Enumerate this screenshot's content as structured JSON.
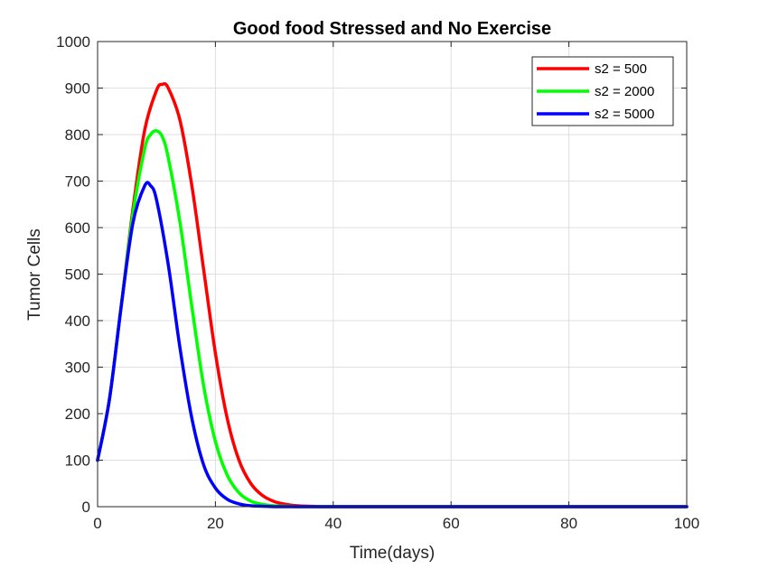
{
  "chart_data": {
    "type": "line",
    "title": "Good food Stressed and No Exercise",
    "xlabel": "Time(days)",
    "ylabel": "Tumor Cells",
    "xlim": [
      0,
      100
    ],
    "ylim": [
      0,
      1000
    ],
    "xticks": [
      0,
      20,
      40,
      60,
      80,
      100
    ],
    "yticks": [
      0,
      100,
      200,
      300,
      400,
      500,
      600,
      700,
      800,
      900,
      1000
    ],
    "grid": true,
    "legend_position": "top-right",
    "series": [
      {
        "name": "s2 = 500",
        "color": "#ff0000",
        "x": [
          0,
          2,
          4,
          6,
          8,
          10,
          11,
          12,
          14,
          16,
          18,
          20,
          22,
          24,
          26,
          28,
          30,
          32,
          34,
          36,
          38,
          40,
          50,
          60,
          70,
          80,
          90,
          100
        ],
        "y": [
          100,
          230,
          430,
          640,
          810,
          895,
          908,
          900,
          830,
          690,
          510,
          330,
          190,
          100,
          50,
          24,
          11,
          5,
          2,
          1,
          0,
          0,
          0,
          0,
          0,
          0,
          0,
          0
        ]
      },
      {
        "name": "s2 = 2000",
        "color": "#00ff00",
        "x": [
          0,
          2,
          4,
          6,
          8,
          9,
          10,
          11,
          12,
          14,
          16,
          18,
          20,
          22,
          24,
          26,
          28,
          30,
          32,
          34,
          36,
          38,
          40,
          50,
          60,
          70,
          80,
          90,
          100
        ],
        "y": [
          100,
          230,
          430,
          630,
          770,
          800,
          808,
          795,
          750,
          610,
          430,
          260,
          140,
          68,
          30,
          12,
          5,
          2,
          1,
          0,
          0,
          0,
          0,
          0,
          0,
          0,
          0,
          0,
          0
        ]
      },
      {
        "name": "s2 = 5000",
        "color": "#0000ff",
        "x": [
          0,
          2,
          4,
          6,
          8,
          9,
          10,
          12,
          14,
          16,
          18,
          20,
          22,
          24,
          26,
          28,
          30,
          32,
          34,
          36,
          38,
          40,
          50,
          60,
          70,
          80,
          90,
          100
        ],
        "y": [
          100,
          230,
          430,
          610,
          690,
          690,
          660,
          520,
          340,
          190,
          90,
          40,
          16,
          6,
          2,
          1,
          0,
          0,
          0,
          0,
          0,
          0,
          0,
          0,
          0,
          0,
          0,
          0
        ]
      }
    ]
  }
}
